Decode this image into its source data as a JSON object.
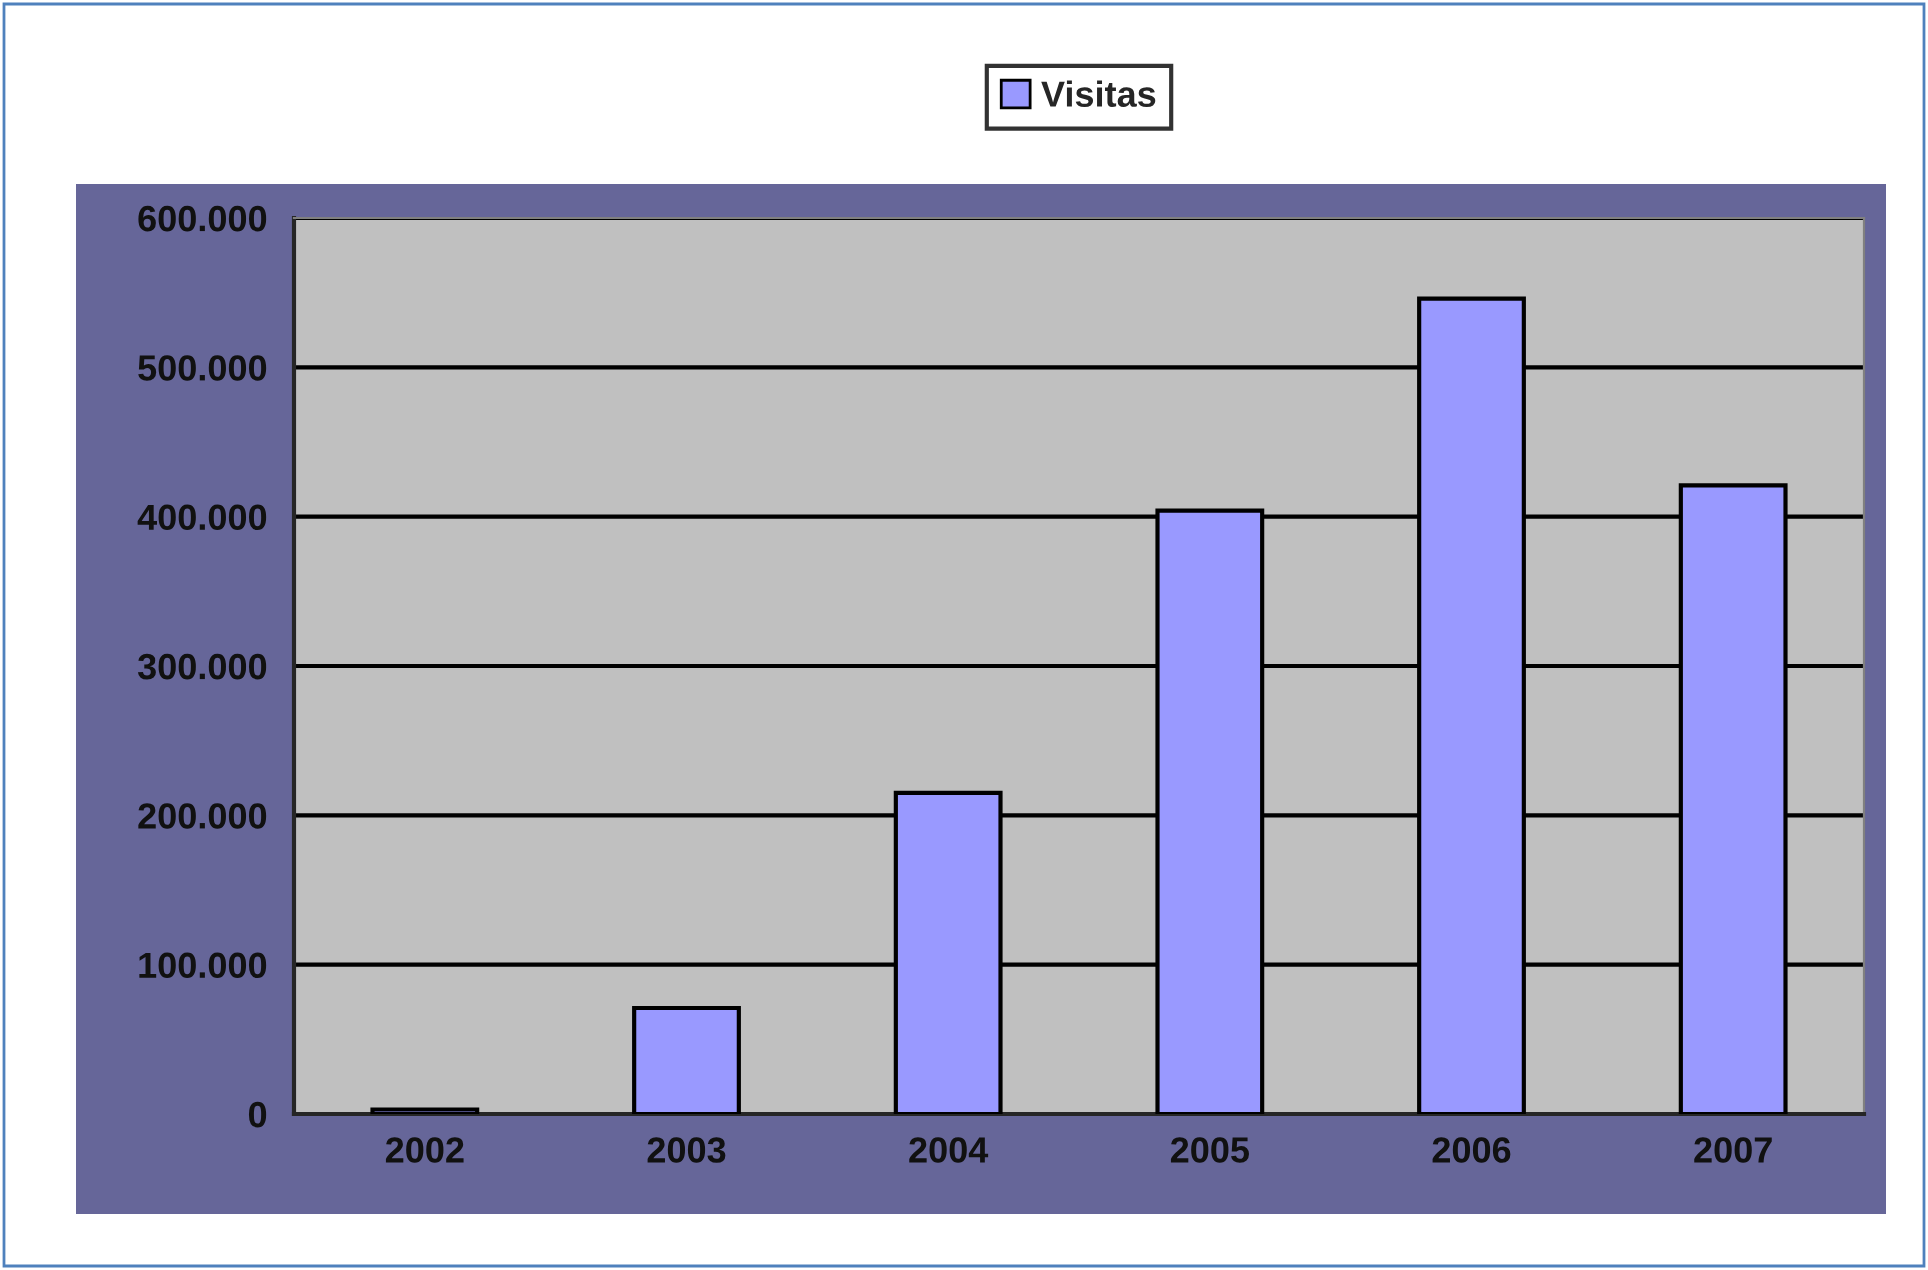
{
  "chart_data": {
    "type": "bar",
    "categories": [
      "2002",
      "2003",
      "2004",
      "2005",
      "2006",
      "2007"
    ],
    "series": [
      {
        "name": "Visitas",
        "color": "#9999ff",
        "values": [
          3000,
          71000,
          215000,
          404000,
          546000,
          421000
        ]
      }
    ],
    "ylim": [
      0,
      600000
    ],
    "yticks": [
      0,
      {
        "value": 100000,
        "label": "100.000"
      },
      {
        "value": 200000,
        "label": "200.000"
      },
      {
        "value": 300000,
        "label": "300.000"
      },
      {
        "value": 400000,
        "label": "400.000"
      },
      {
        "value": 500000,
        "label": "500.000"
      },
      {
        "value": 600000,
        "label": "600.000"
      }
    ],
    "grid": "y",
    "legend": "top"
  }
}
